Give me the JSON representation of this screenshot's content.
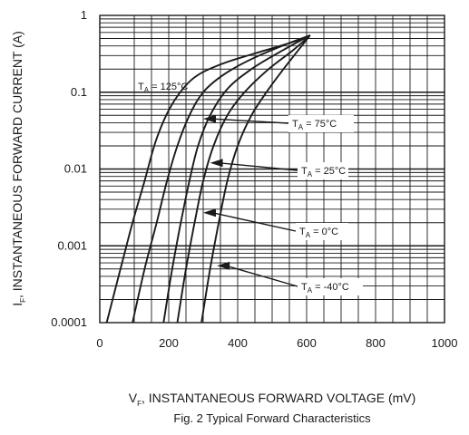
{
  "chart_data": {
    "type": "line",
    "title": "Fig. 2  Typical Forward Characteristics",
    "xlabel": "V",
    "xlabel_sub": "F",
    "xlabel_rest": ", INSTANTANEOUS FORWARD VOLTAGE (mV)",
    "ylabel": "I",
    "ylabel_sub": "F",
    "ylabel_rest": ", INSTANTANEOUS FORWARD CURRENT (A)",
    "xlim": [
      0,
      1000
    ],
    "ylim": [
      0.0001,
      1
    ],
    "yscale": "log",
    "grid": true,
    "xticks": [
      0,
      200,
      400,
      600,
      800,
      1000
    ],
    "xtick_labels": [
      "0",
      "200",
      "400",
      "600",
      "800",
      "1000"
    ],
    "yticks": [
      1,
      0.1,
      0.01,
      0.001,
      0.0001
    ],
    "ytick_labels": [
      "1",
      "0.1",
      "0.01",
      "0.001",
      "0.0001"
    ],
    "series": [
      {
        "name": "T_A = 125°C",
        "label_main": "T",
        "label_sub": "A",
        "label_rest": " = 125°C",
        "x": [
          20,
          60,
          95,
          130,
          165,
          210,
          270,
          350,
          450,
          560,
          610
        ],
        "y": [
          0.0001,
          0.0005,
          0.002,
          0.007,
          0.025,
          0.07,
          0.15,
          0.23,
          0.32,
          0.45,
          0.55
        ]
      },
      {
        "name": "T_A = 75°C",
        "label_main": "T",
        "label_sub": "A",
        "label_rest": " = 75°C",
        "x": [
          95,
          130,
          165,
          195,
          225,
          260,
          300,
          360,
          440,
          540,
          610
        ],
        "y": [
          0.0001,
          0.0005,
          0.002,
          0.007,
          0.02,
          0.05,
          0.1,
          0.17,
          0.27,
          0.42,
          0.55
        ]
      },
      {
        "name": "T_A = 25°C",
        "label_main": "T",
        "label_sub": "A",
        "label_rest": " = 25°C",
        "x": [
          185,
          210,
          235,
          260,
          285,
          320,
          370,
          440,
          520,
          610
        ],
        "y": [
          0.0001,
          0.0005,
          0.002,
          0.007,
          0.02,
          0.05,
          0.11,
          0.2,
          0.33,
          0.55
        ]
      },
      {
        "name": "T_A = 0°C",
        "label_main": "T",
        "label_sub": "A",
        "label_rest": " = 0°C",
        "x": [
          225,
          250,
          275,
          300,
          330,
          370,
          420,
          490,
          560,
          610
        ],
        "y": [
          0.0001,
          0.0005,
          0.002,
          0.007,
          0.02,
          0.05,
          0.1,
          0.2,
          0.35,
          0.55
        ]
      },
      {
        "name": "T_A = -40°C",
        "label_main": "T",
        "label_sub": "A",
        "label_rest": " = -40°C",
        "x": [
          295,
          320,
          345,
          370,
          400,
          440,
          490,
          540,
          610
        ],
        "y": [
          0.0001,
          0.0005,
          0.002,
          0.007,
          0.02,
          0.05,
          0.11,
          0.22,
          0.55
        ]
      }
    ],
    "annotations": [
      {
        "series": 0,
        "style": "text"
      },
      {
        "series": 1,
        "style": "boxed-arrow",
        "arrow_tip_x": 300,
        "arrow_tip_y": 0.045
      },
      {
        "series": 2,
        "style": "boxed-arrow",
        "arrow_tip_x": 320,
        "arrow_tip_y": 0.012
      },
      {
        "series": 3,
        "style": "boxed-arrow",
        "arrow_tip_x": 300,
        "arrow_tip_y": 0.0027
      },
      {
        "series": 4,
        "style": "boxed-arrow",
        "arrow_tip_x": 340,
        "arrow_tip_y": 0.00055
      }
    ]
  }
}
